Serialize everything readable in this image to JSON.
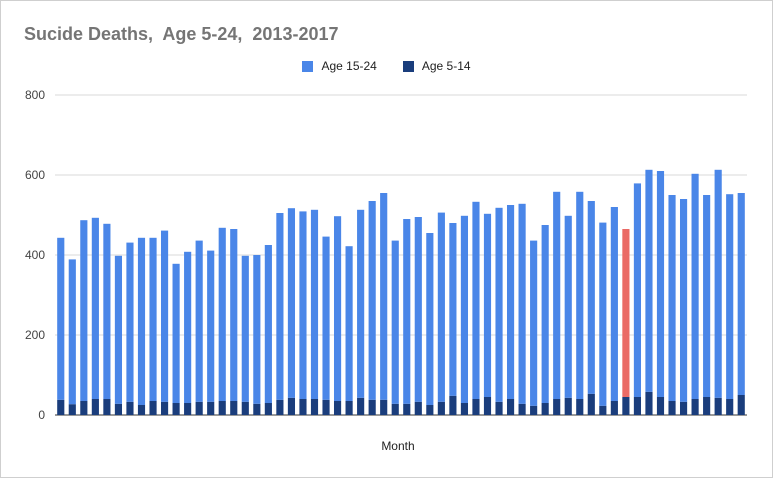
{
  "chart_data": {
    "type": "bar",
    "stacked": true,
    "title": "Sucide Deaths,  Age 5-24,  2013-2017",
    "xlabel": "Month",
    "ylabel": "",
    "ylim": [
      0,
      800
    ],
    "yticks": [
      0,
      200,
      400,
      600,
      800
    ],
    "grid": true,
    "legend_position": "top",
    "x_tick_labels_shown": false,
    "highlight_index": 49,
    "highlight_color": "#ea6a65",
    "series": [
      {
        "name": "Age 5-14",
        "color": "#1a3d7c",
        "values": [
          38,
          27,
          35,
          40,
          40,
          28,
          33,
          25,
          35,
          33,
          30,
          30,
          33,
          33,
          35,
          35,
          33,
          28,
          30,
          38,
          43,
          40,
          40,
          38,
          35,
          35,
          43,
          38,
          38,
          28,
          28,
          33,
          25,
          33,
          48,
          30,
          40,
          45,
          33,
          40,
          28,
          23,
          30,
          40,
          43,
          40,
          53,
          23,
          35,
          45,
          45,
          58,
          45,
          35,
          33,
          40,
          45,
          43,
          40,
          50
        ]
      },
      {
        "name": "Age 15-24",
        "color": "#4a86e8",
        "values": [
          405,
          362,
          452,
          453,
          438,
          370,
          398,
          418,
          408,
          428,
          348,
          378,
          403,
          378,
          433,
          430,
          365,
          372,
          395,
          467,
          474,
          469,
          473,
          408,
          462,
          387,
          470,
          497,
          517,
          408,
          462,
          462,
          430,
          473,
          432,
          468,
          493,
          458,
          485,
          485,
          500,
          413,
          445,
          518,
          455,
          518,
          482,
          458,
          485,
          420,
          534,
          555,
          565,
          515,
          507,
          563,
          505,
          570,
          512,
          505
        ]
      }
    ]
  },
  "legend": {
    "items": [
      {
        "label": "Age 15-24",
        "color": "#4a86e8"
      },
      {
        "label": "Age 5-14",
        "color": "#1a3d7c"
      }
    ]
  }
}
